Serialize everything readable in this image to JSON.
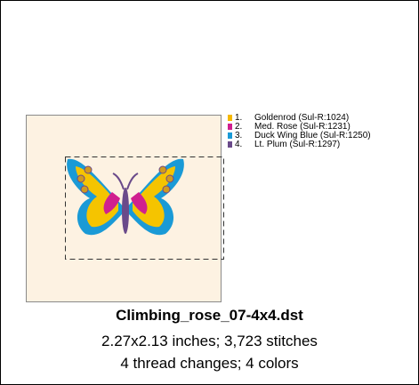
{
  "threads": [
    {
      "number": "1.",
      "name": "Goldenrod (Sul-R:1024)",
      "color": "#f5b800"
    },
    {
      "number": "2.",
      "name": "Med. Rose (Sul-R:1231)",
      "color": "#d01f8f"
    },
    {
      "number": "3.",
      "name": "Duck Wing Blue (Sul-R:1250)",
      "color": "#1a9ad6"
    },
    {
      "number": "4.",
      "name": "Lt. Plum (Sul-R:1297)",
      "color": "#6a4a8a"
    }
  ],
  "file_name": "Climbing_rose_07-4x4.dst",
  "size_info": "2.27x2.13 inches; 3,723 stitches",
  "color_info": "4 thread changes; 4 colors"
}
